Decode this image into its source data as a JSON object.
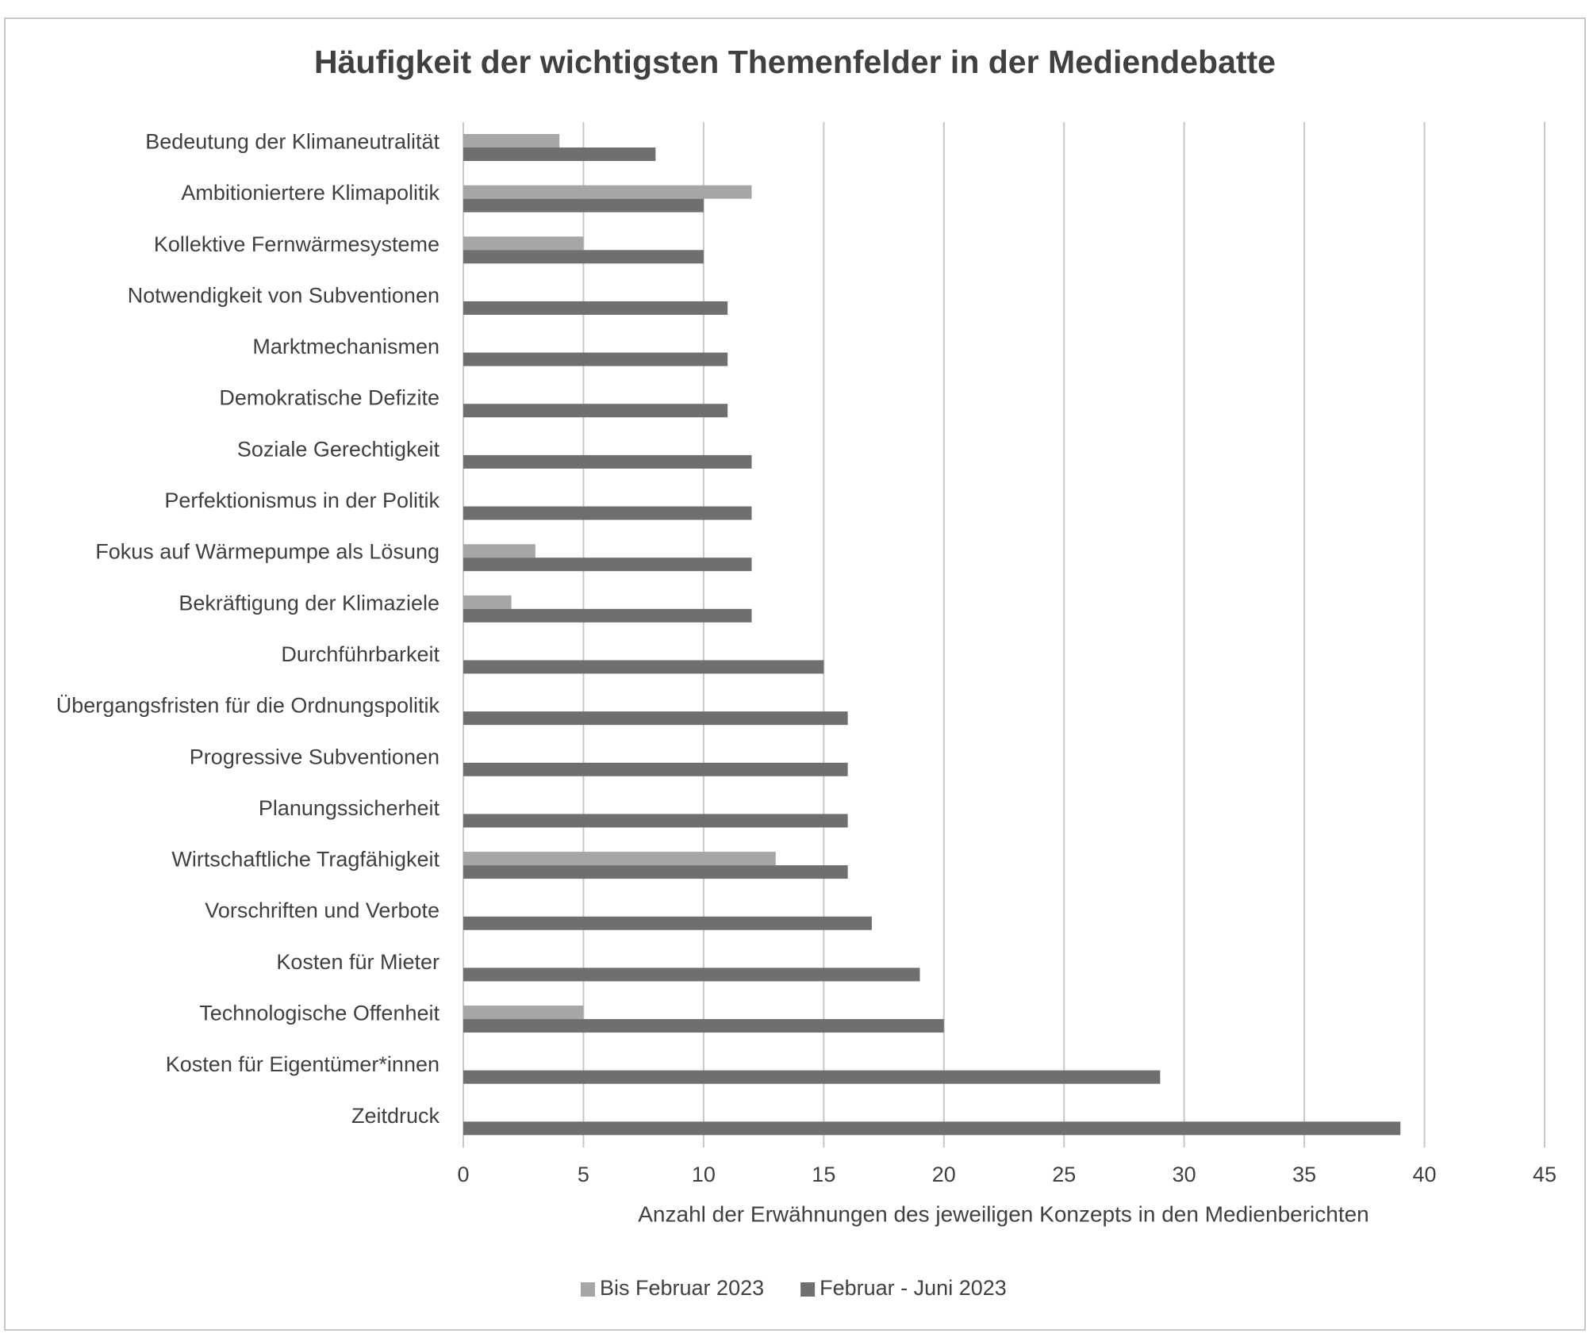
{
  "chart_data": {
    "type": "hbar",
    "title": "Häufigkeit der wichtigsten Themenfelder in der Mediendebatte",
    "x_label": "Anzahl der Erwähnungen des jeweiligen Konzepts in den Medienberichten",
    "categories": [
      "Bedeutung der Klimaneutralität",
      "Ambitioniertere Klimapolitik",
      "Kollektive Fernwärmesysteme",
      "Notwendigkeit von Subventionen",
      "Marktmechanismen",
      "Demokratische Defizite",
      "Soziale Gerechtigkeit",
      "Perfektionismus in der Politik",
      "Fokus auf Wärmepumpe als Lösung",
      "Bekräftigung der Klimaziele",
      "Durchführbarkeit",
      "Übergangsfristen für die Ordnungspolitik",
      "Progressive Subventionen",
      "Planungssicherheit",
      "Wirtschaftliche Tragfähigkeit",
      "Vorschriften und Verbote",
      "Kosten für Mieter",
      "Technologische Offenheit",
      "Kosten für Eigentümer*innen",
      "Zeitdruck"
    ],
    "series": [
      {
        "name": "Bis Februar 2023",
        "color": "#a6a6a6",
        "values": [
          4,
          12,
          5,
          0,
          0,
          0,
          0,
          0,
          3,
          2,
          0,
          0,
          0,
          0,
          13,
          0,
          0,
          5,
          0,
          0
        ]
      },
      {
        "name": "Februar - Juni 2023",
        "color": "#6f6f6f",
        "values": [
          8,
          10,
          10,
          11,
          11,
          11,
          12,
          12,
          12,
          12,
          15,
          16,
          16,
          16,
          16,
          17,
          19,
          20,
          29,
          39
        ]
      }
    ],
    "xlim": [
      0,
      45
    ],
    "xticks": [
      0,
      5,
      10,
      15,
      20,
      25,
      30,
      35,
      40,
      45
    ],
    "grid": true,
    "legend": "bottom"
  }
}
